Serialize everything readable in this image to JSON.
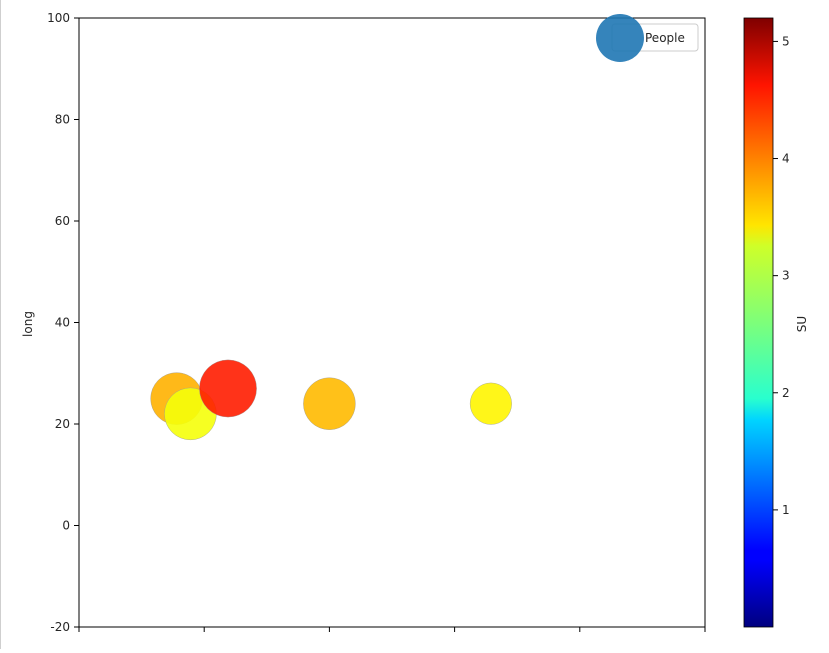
{
  "chart_data": {
    "type": "scatter",
    "title": "",
    "xlabel": "",
    "ylabel": "long",
    "ylim": [
      -20,
      100
    ],
    "yticks": [
      -20,
      0,
      20,
      40,
      60,
      80,
      100
    ],
    "xlim": [
      0,
      5
    ],
    "xtick_positions": [
      0,
      1,
      2,
      3,
      4,
      5
    ],
    "grid": false,
    "legend": {
      "placement": "top-right",
      "entries": [
        "People"
      ],
      "marker_color": "#2e7ebc"
    },
    "colorbar": {
      "label": "SU",
      "range": [
        0,
        5.2
      ],
      "ticks": [
        1,
        2,
        3,
        4,
        5
      ],
      "colormap": "jet"
    },
    "points": [
      {
        "x": 0.78,
        "y": 25,
        "c": 3.65,
        "size": 1
      },
      {
        "x": 0.89,
        "y": 22,
        "c": 3.2,
        "size": 1
      },
      {
        "x": 1.19,
        "y": 27,
        "c": 4.4,
        "size": 1.1
      },
      {
        "x": 2.0,
        "y": 24,
        "c": 3.6,
        "size": 1
      },
      {
        "x": 3.29,
        "y": 24,
        "c": 3.3,
        "size": 0.8
      }
    ]
  }
}
